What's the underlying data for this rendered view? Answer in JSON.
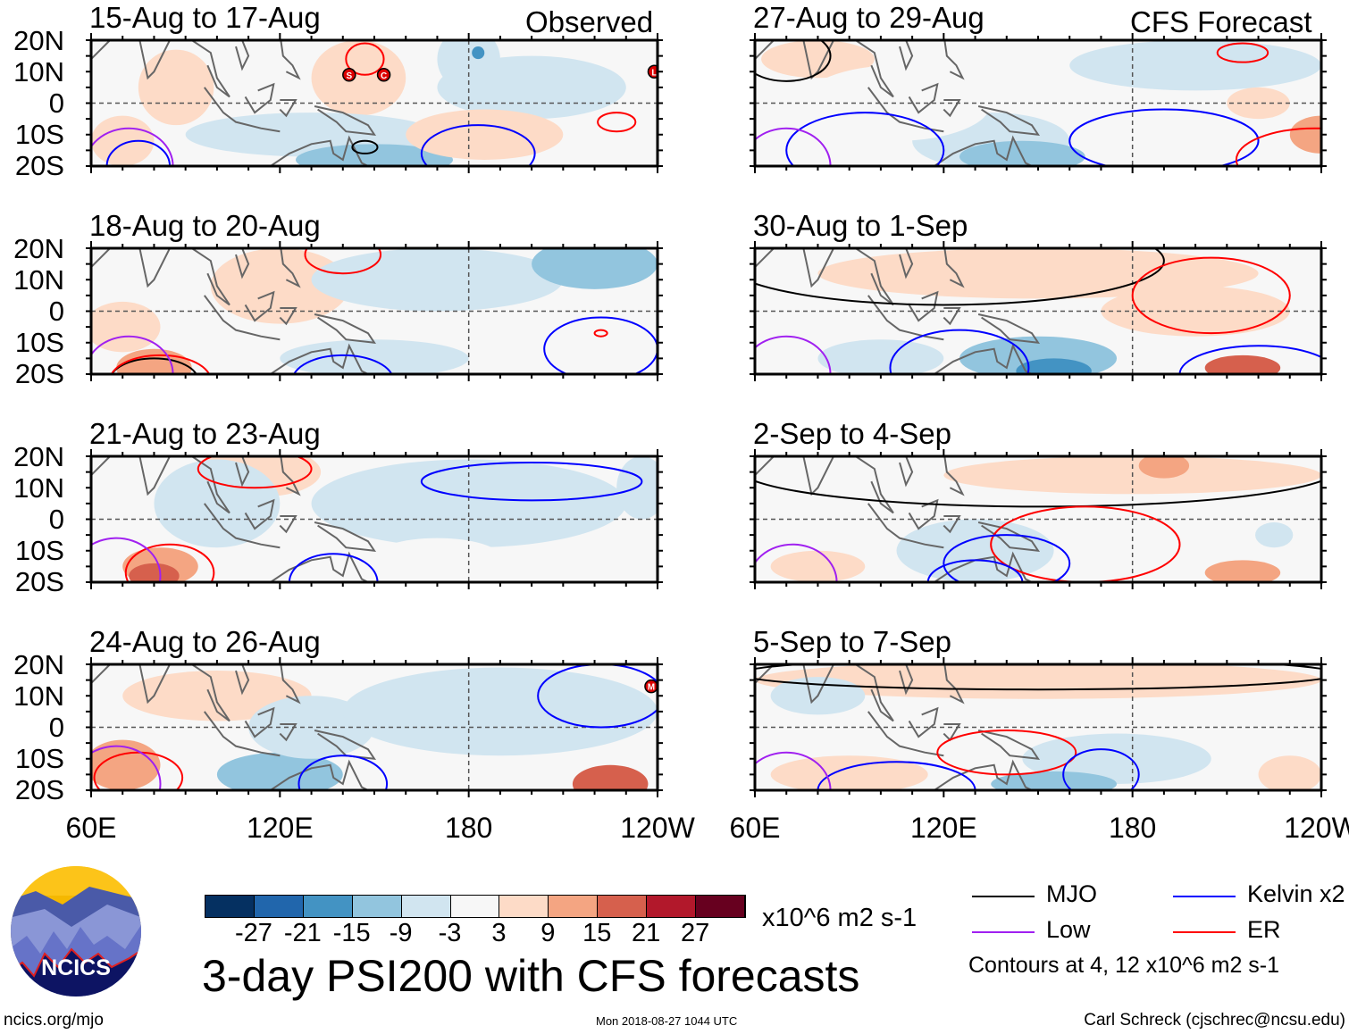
{
  "column_headers": {
    "left": "Observed",
    "right": "CFS Forecast"
  },
  "panels": [
    {
      "title": "15-Aug to 17-Aug",
      "blobs": [
        [
          87,
          5,
          12,
          12,
          5
        ],
        [
          145,
          8,
          15,
          12,
          5
        ],
        [
          180,
          14,
          10,
          10,
          -7
        ],
        [
          183,
          16,
          2,
          2,
          -18
        ],
        [
          200,
          5,
          30,
          10,
          -5
        ],
        [
          130,
          -10,
          40,
          7,
          -5
        ],
        [
          150,
          -18,
          25,
          5,
          -10
        ],
        [
          185,
          -10,
          25,
          8,
          5
        ],
        [
          70,
          -12,
          10,
          8,
          5
        ]
      ],
      "contours": [
        [
          "ER",
          147,
          14,
          6,
          5
        ],
        [
          "ER",
          227,
          -6,
          6,
          3
        ],
        [
          "Kelvin",
          183,
          -16,
          18,
          9
        ],
        [
          "Kelvin",
          75,
          -20,
          10,
          8
        ],
        [
          "Low",
          72,
          -20,
          14,
          12
        ],
        [
          "MJO",
          147,
          -14,
          4,
          2
        ]
      ],
      "storms": [
        [
          "S",
          142,
          9
        ],
        [
          "C",
          153,
          9
        ],
        [
          "L",
          239,
          10
        ]
      ]
    },
    {
      "title": "18-Aug to 20-Aug",
      "blobs": [
        [
          120,
          8,
          22,
          12,
          5
        ],
        [
          70,
          -5,
          12,
          8,
          5
        ],
        [
          80,
          -18,
          12,
          6,
          9
        ],
        [
          170,
          10,
          40,
          10,
          -5
        ],
        [
          220,
          15,
          20,
          8,
          -12
        ],
        [
          150,
          -15,
          30,
          6,
          -5
        ]
      ],
      "contours": [
        [
          "ER",
          140,
          18,
          12,
          6
        ],
        [
          "MJO",
          80,
          -22,
          14,
          7
        ],
        [
          "ER",
          82,
          -22,
          16,
          8
        ],
        [
          "Kelvin",
          140,
          -22,
          16,
          8
        ],
        [
          "Kelvin",
          222,
          -12,
          18,
          10
        ],
        [
          "Low",
          72,
          -20,
          14,
          12
        ],
        [
          "ER",
          222,
          -7,
          2,
          1
        ]
      ],
      "storms": []
    },
    {
      "title": "21-Aug to 23-Aug",
      "blobs": [
        [
          113,
          15,
          20,
          8,
          5
        ],
        [
          82,
          -15,
          12,
          6,
          9
        ],
        [
          80,
          -18,
          8,
          4,
          15
        ],
        [
          100,
          5,
          20,
          14,
          -5
        ],
        [
          180,
          5,
          50,
          14,
          -5
        ],
        [
          170,
          -12,
          20,
          6,
          -3
        ],
        [
          235,
          10,
          8,
          10,
          -8
        ]
      ],
      "contours": [
        [
          "ER",
          112,
          16,
          18,
          6
        ],
        [
          "ER",
          85,
          -17,
          14,
          9
        ],
        [
          "Kelvin",
          200,
          12,
          35,
          6
        ],
        [
          "Kelvin",
          137,
          -20,
          14,
          9
        ],
        [
          "Low",
          68,
          -18,
          14,
          12
        ]
      ],
      "storms": []
    },
    {
      "title": "24-Aug to 26-Aug",
      "blobs": [
        [
          100,
          10,
          30,
          8,
          5
        ],
        [
          70,
          -12,
          12,
          8,
          9
        ],
        [
          120,
          -15,
          20,
          7,
          -10
        ],
        [
          130,
          0,
          20,
          10,
          -5
        ],
        [
          190,
          5,
          50,
          14,
          -5
        ],
        [
          225,
          -18,
          12,
          6,
          15
        ]
      ],
      "contours": [
        [
          "Kelvin",
          222,
          10,
          20,
          10
        ],
        [
          "Kelvin",
          140,
          -18,
          14,
          9
        ],
        [
          "ER",
          75,
          -16,
          14,
          8
        ],
        [
          "Low",
          68,
          -18,
          14,
          12
        ]
      ],
      "storms": [
        [
          "M",
          238,
          13
        ]
      ]
    },
    {
      "title": "27-Aug to 29-Aug",
      "blobs": [
        [
          80,
          14,
          18,
          6,
          5
        ],
        [
          135,
          -12,
          25,
          9,
          -9
        ],
        [
          145,
          -17,
          20,
          5,
          -15
        ],
        [
          200,
          12,
          40,
          8,
          -5
        ],
        [
          220,
          0,
          10,
          5,
          5
        ],
        [
          105,
          0,
          30,
          12,
          -3
        ],
        [
          240,
          -10,
          10,
          6,
          12
        ]
      ],
      "contours": [
        [
          "MJO",
          70,
          15,
          14,
          8
        ],
        [
          "ER",
          215,
          16,
          8,
          3
        ],
        [
          "Kelvin",
          95,
          -15,
          25,
          12
        ],
        [
          "Kelvin",
          190,
          -12,
          30,
          10
        ],
        [
          "Low",
          70,
          -20,
          14,
          12
        ],
        [
          "ER",
          238,
          -18,
          25,
          10
        ]
      ],
      "storms": []
    },
    {
      "title": "30-Aug to 1-Sep",
      "blobs": [
        [
          150,
          12,
          70,
          8,
          5
        ],
        [
          150,
          -15,
          25,
          7,
          -10
        ],
        [
          155,
          -19,
          12,
          4,
          -21
        ],
        [
          100,
          -15,
          20,
          6,
          -5
        ],
        [
          215,
          -18,
          12,
          4,
          15
        ],
        [
          200,
          0,
          30,
          8,
          5
        ]
      ],
      "contours": [
        [
          "MJO",
          120,
          16,
          70,
          14
        ],
        [
          "ER",
          205,
          5,
          25,
          12
        ],
        [
          "Kelvin",
          125,
          -18,
          22,
          12
        ],
        [
          "Kelvin",
          220,
          -20,
          25,
          9
        ],
        [
          "Low",
          70,
          -20,
          14,
          12
        ]
      ],
      "storms": []
    },
    {
      "title": "2-Sep to 4-Sep",
      "blobs": [
        [
          180,
          14,
          60,
          6,
          5
        ],
        [
          190,
          17,
          8,
          4,
          12
        ],
        [
          130,
          -10,
          25,
          10,
          -5
        ],
        [
          225,
          -5,
          6,
          4,
          -5
        ],
        [
          215,
          -17,
          12,
          4,
          9
        ],
        [
          80,
          -15,
          15,
          5,
          5
        ]
      ],
      "contours": [
        [
          "MJO",
          150,
          16,
          95,
          12
        ],
        [
          "ER",
          165,
          -8,
          30,
          12
        ],
        [
          "Kelvin",
          140,
          -14,
          20,
          9
        ],
        [
          "Kelvin",
          130,
          -20,
          15,
          7
        ],
        [
          "Low",
          72,
          -20,
          14,
          12
        ]
      ],
      "storms": []
    },
    {
      "title": "5-Sep to 7-Sep",
      "blobs": [
        [
          150,
          15,
          90,
          6,
          5
        ],
        [
          80,
          10,
          15,
          6,
          -5
        ],
        [
          175,
          -10,
          30,
          8,
          -5
        ],
        [
          155,
          -18,
          20,
          4,
          -10
        ],
        [
          90,
          -15,
          25,
          6,
          5
        ],
        [
          230,
          -15,
          10,
          6,
          5
        ]
      ],
      "contours": [
        [
          "MJO",
          150,
          17,
          95,
          5
        ],
        [
          "ER",
          140,
          -8,
          22,
          7
        ],
        [
          "Kelvin",
          105,
          -20,
          25,
          9
        ],
        [
          "Kelvin",
          170,
          -15,
          12,
          8
        ],
        [
          "Low",
          70,
          -20,
          14,
          12
        ]
      ],
      "storms": []
    }
  ],
  "lat_labels": [
    "20N",
    "10N",
    "0",
    "10S",
    "20S"
  ],
  "lon_labels": [
    "60E",
    "120E",
    "180",
    "120W"
  ],
  "colorbar": {
    "colors": [
      "#053061",
      "#2166ac",
      "#4393c3",
      "#92c5de",
      "#d1e5f0",
      "#f7f7f7",
      "#fddbc7",
      "#f4a582",
      "#d6604d",
      "#b2182b",
      "#67001f"
    ],
    "ticks": [
      "-27",
      "-21",
      "-15",
      "-9",
      "-3",
      "3",
      "9",
      "15",
      "21",
      "27"
    ],
    "units": "x10^6 m2 s-1"
  },
  "legend": {
    "items": [
      {
        "label": "MJO",
        "color": "#000000"
      },
      {
        "label": "Kelvin x2",
        "color": "#0000ff"
      },
      {
        "label": "Low",
        "color": "#a020f0"
      },
      {
        "label": "ER",
        "color": "#ff0000"
      }
    ],
    "note": "Contours at 4, 12 x10^6 m2 s-1"
  },
  "logo": {
    "text": "NCICS"
  },
  "title": "3-day PSI200 with CFS forecasts",
  "footer": {
    "url": "ncics.org/mjo",
    "timestamp": "Mon 2018-08-27 1044 UTC",
    "credit": "Carl Schreck (cjschrec@ncsu.edu)"
  }
}
